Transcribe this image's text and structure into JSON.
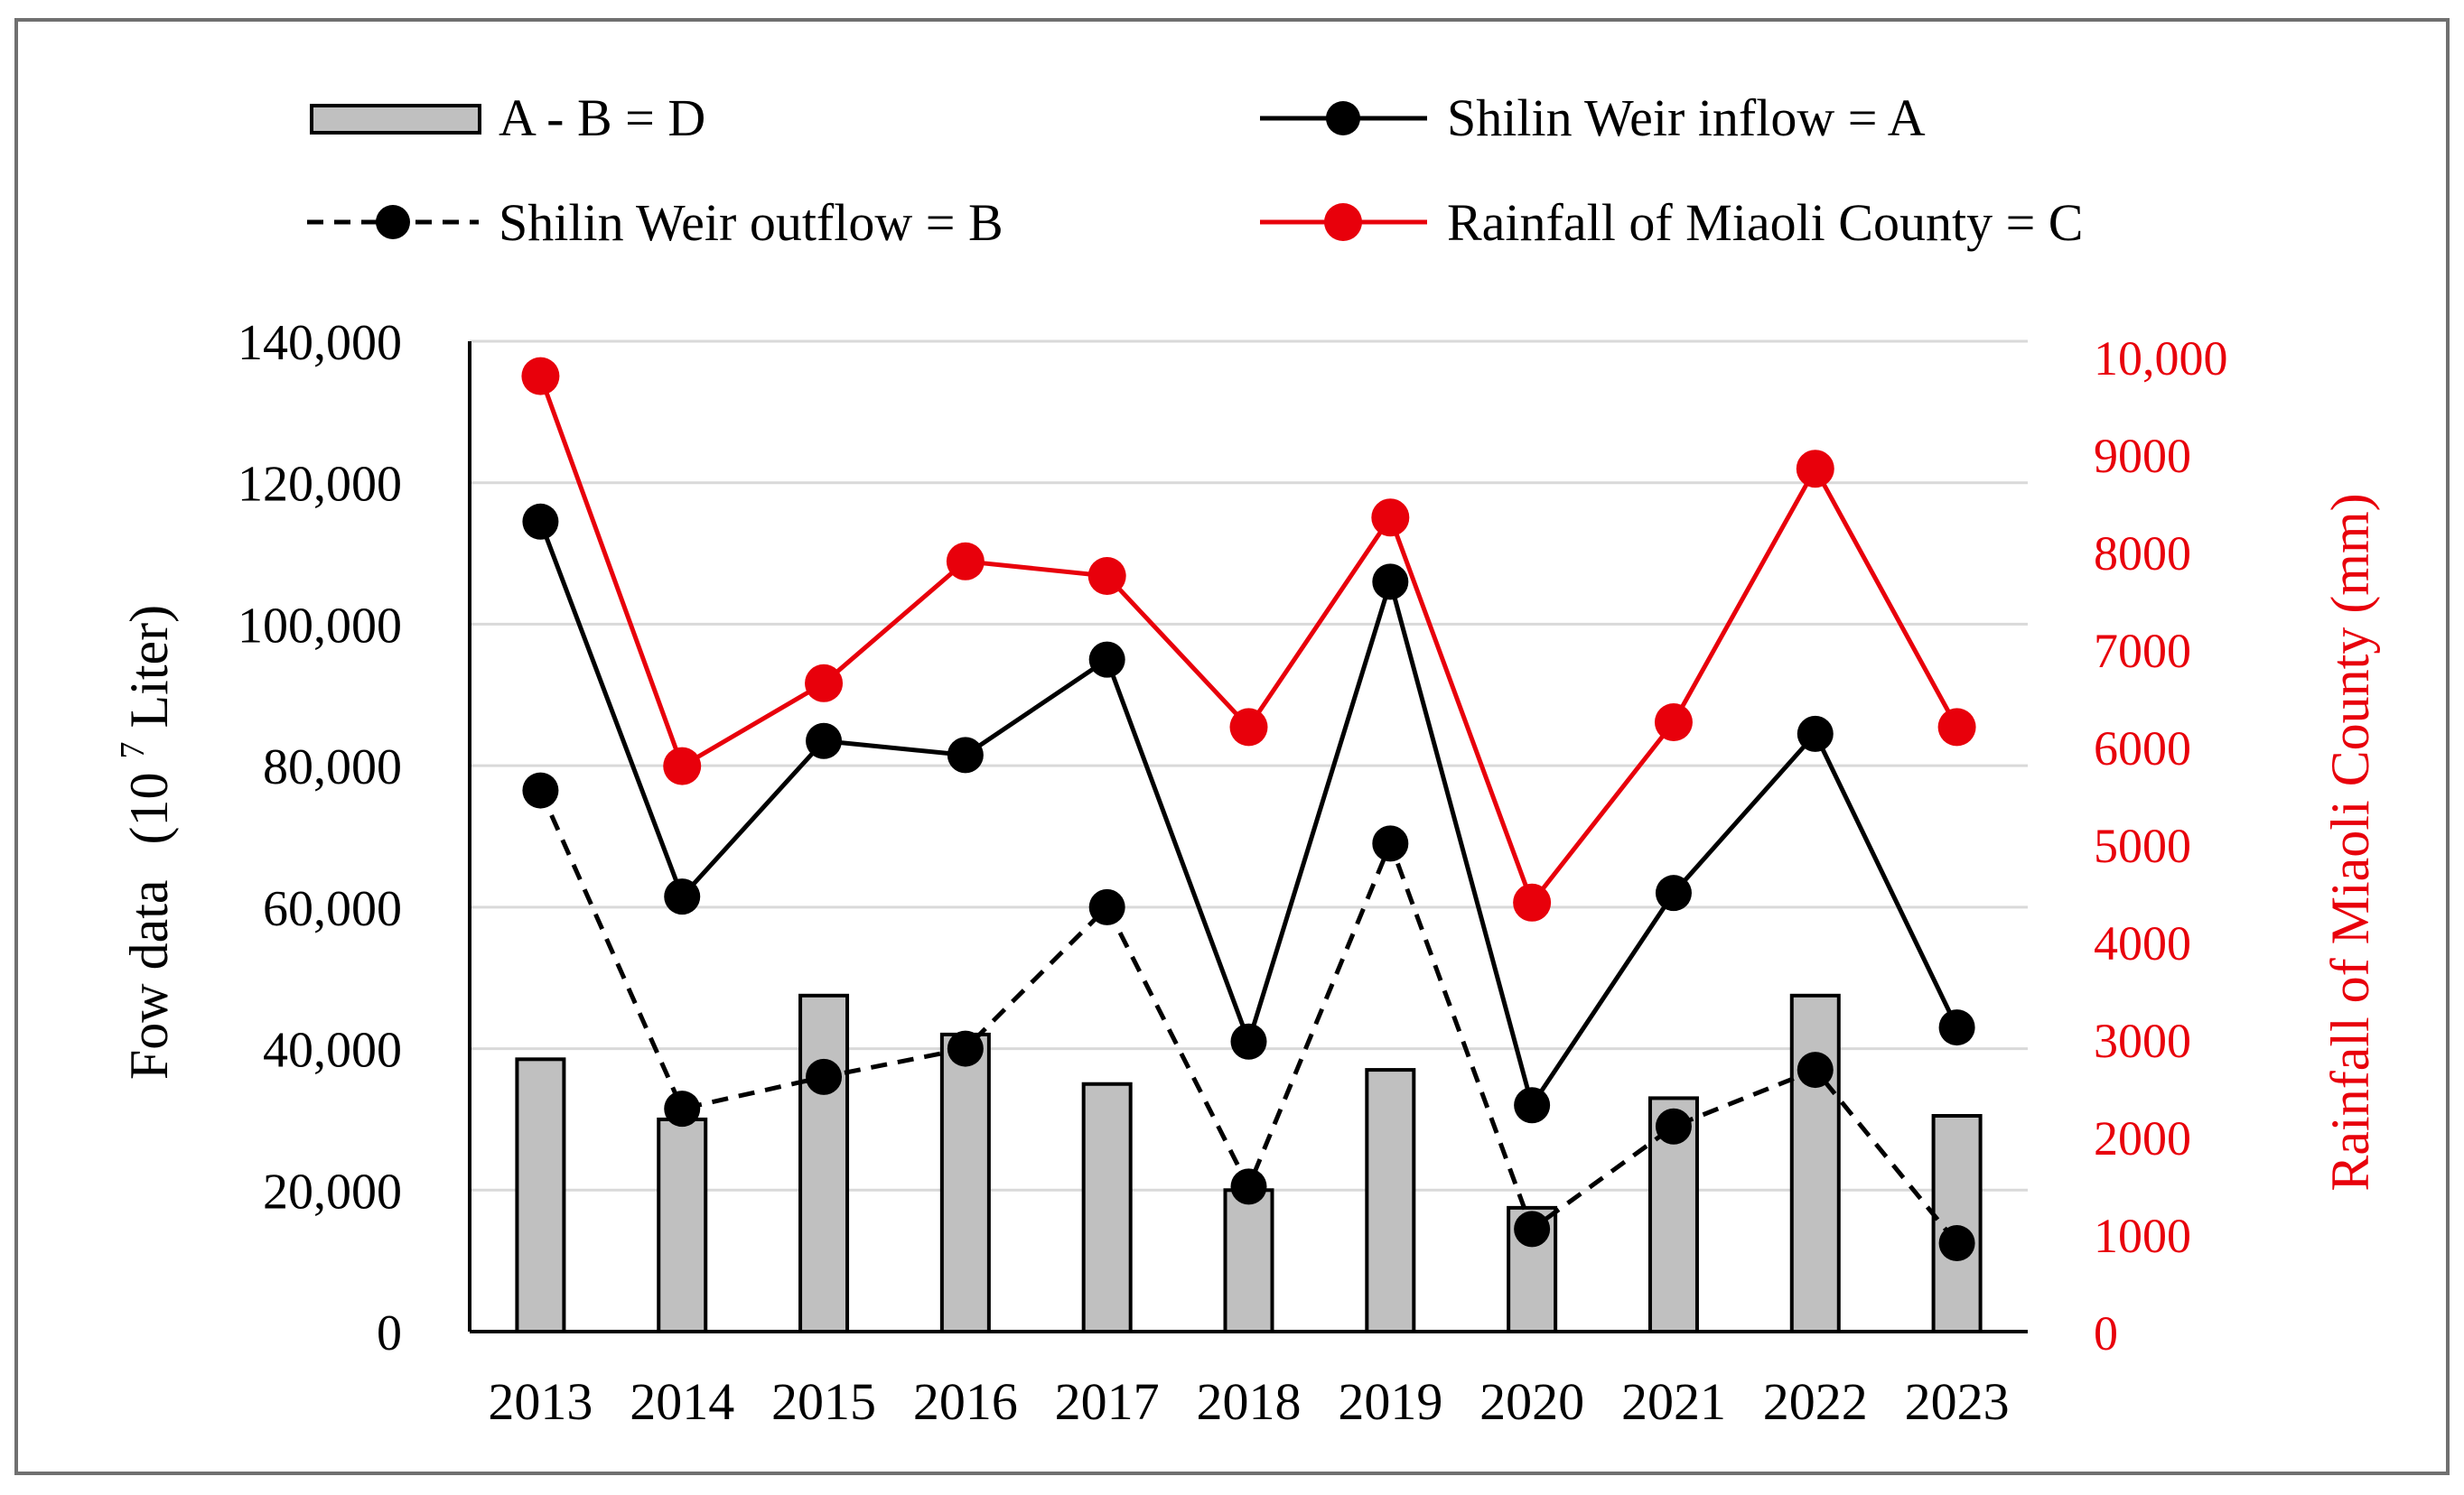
{
  "chart_data": {
    "type": "bar",
    "categories": [
      "2013",
      "2014",
      "2015",
      "2016",
      "2017",
      "2018",
      "2019",
      "2020",
      "2021",
      "2022",
      "2023"
    ],
    "left_axis": {
      "label_main": "Fow data",
      "label_unit_prefix": "(10",
      "label_unit_exp": "7",
      "label_unit_suffix": " Liter)",
      "ylim": [
        0,
        140000
      ],
      "ticks": [
        0,
        20000,
        40000,
        60000,
        80000,
        100000,
        120000,
        140000
      ],
      "tick_labels": [
        "0",
        "20,000",
        "40,000",
        "60,000",
        "80,000",
        "100,000",
        "120,000",
        "140,000"
      ]
    },
    "right_axis": {
      "label": "Rainfall of Miaoli County (mm)",
      "ylim": [
        0,
        10000
      ],
      "ticks": [
        0,
        1000,
        2000,
        3000,
        4000,
        5000,
        6000,
        7000,
        8000,
        9000,
        10000
      ],
      "tick_labels": [
        "0",
        "1000",
        "2000",
        "3000",
        "4000",
        "5000",
        "6000",
        "7000",
        "8000",
        "9000",
        "10,000"
      ]
    },
    "series": [
      {
        "name": "A - B = D",
        "kind": "bar",
        "axis": "left",
        "values": [
          38500,
          30000,
          47500,
          42000,
          35000,
          20000,
          37000,
          17500,
          33000,
          47500,
          30500
        ]
      },
      {
        "name": "Shilin Weir inflow = A",
        "kind": "line",
        "axis": "left",
        "style": "solid",
        "values": [
          114500,
          61500,
          83500,
          81500,
          95000,
          41000,
          106000,
          32000,
          62000,
          84500,
          43000
        ]
      },
      {
        "name": "Shilin Weir outflow = B",
        "kind": "line",
        "axis": "left",
        "style": "dashed",
        "values": [
          76500,
          31500,
          36000,
          40000,
          60000,
          20500,
          69000,
          14500,
          29000,
          37000,
          12500
        ]
      },
      {
        "name": "Rainfall of Miaoli County = C",
        "kind": "line",
        "axis": "right",
        "style": "solid",
        "values": [
          9800,
          5800,
          6650,
          7900,
          7750,
          6200,
          8350,
          4400,
          6250,
          8850,
          6200
        ]
      }
    ],
    "legend_position": "top",
    "grid": true
  },
  "colors": {
    "bar_fill": "#c0c0c0",
    "bar_stroke": "#000000",
    "line_black": "#000000",
    "line_red": "#e8000b",
    "grid": "#d9d9d9"
  }
}
